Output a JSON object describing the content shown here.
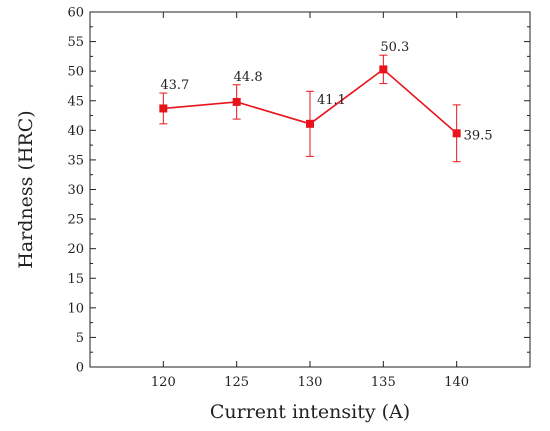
{
  "chart_data": {
    "type": "line",
    "xlabel": "Current intensity (A)",
    "ylabel": "Hardness (HRC)",
    "categories": [
      "120",
      "125",
      "130",
      "135",
      "140"
    ],
    "ylim": [
      0,
      60
    ],
    "yticks": [
      0,
      5,
      10,
      15,
      20,
      25,
      30,
      35,
      40,
      45,
      50,
      55,
      60
    ],
    "series": [
      {
        "values": [
          43.7,
          44.8,
          41.1,
          50.3,
          39.5
        ],
        "error": [
          2.6,
          2.9,
          5.5,
          2.4,
          4.8
        ],
        "labels": [
          "43.7",
          "44.8",
          "41.1",
          "50.3",
          "39.5"
        ],
        "color": "#e8141b"
      }
    ],
    "grid": false,
    "legend": "none"
  }
}
